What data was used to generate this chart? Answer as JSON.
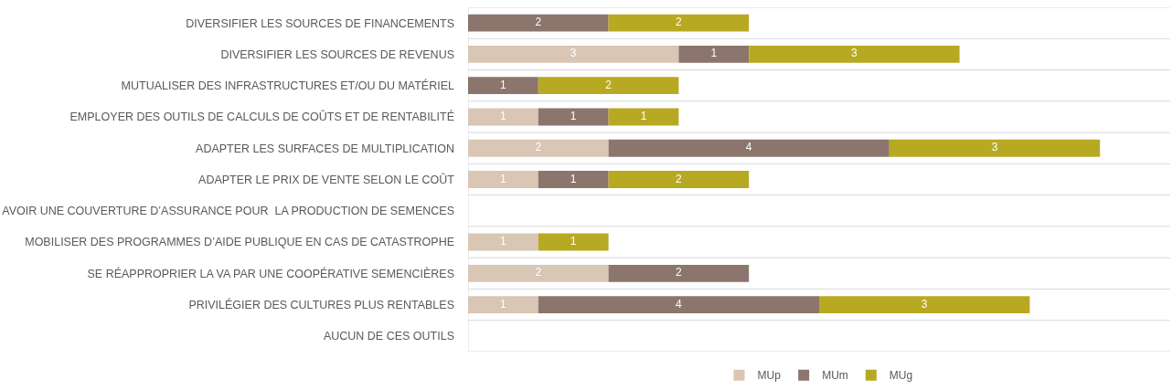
{
  "chart_data": {
    "type": "bar",
    "orientation": "horizontal",
    "stacked": true,
    "legend": "bottom",
    "grid": "y",
    "tick_labels": "y",
    "xlim": [
      0,
      10
    ],
    "categories": [
      "DIVERSIFIER LES SOURCES DE FINANCEMENTS",
      "DIVERSIFIER LES SOURCES DE REVENUS",
      "MUTUALISER DES INFRASTRUCTURES ET/OU DU MATÉRIEL",
      "EMPLOYER DES OUTILS DE CALCULS DE COÛTS ET DE RENTABILITÉ",
      "ADAPTER LES SURFACES DE MULTIPLICATION",
      "ADAPTER LE PRIX DE VENTE SELON LE COÛT",
      "AVOIR UNE COUVERTURE D’ASSURANCE POUR  LA PRODUCTION DE SEMENCES",
      "MOBILISER DES PROGRAMMES D’AIDE PUBLIQUE EN CAS DE CATASTROPHE",
      "SE RÉAPPROPRIER LA VA PAR UNE COOPÉRATIVE SEMENCIÈRES",
      "PRIVILÉGIER DES CULTURES PLUS RENTABLES",
      "AUCUN DE CES OUTILS"
    ],
    "series": [
      {
        "name": "MUp",
        "color": "#d9c6b5",
        "values": [
          0,
          3,
          0,
          1,
          2,
          1,
          null,
          1,
          2,
          1,
          null
        ],
        "value_labels": [
          null,
          "3",
          null,
          "1",
          "2",
          "1",
          null,
          "1",
          "2",
          "1",
          null
        ]
      },
      {
        "name": "MUm",
        "color": "#8b756d",
        "values": [
          2,
          1,
          1,
          1,
          4,
          1,
          null,
          0,
          2,
          4,
          null
        ],
        "value_labels": [
          "2",
          "1",
          "1",
          "1",
          "4",
          "1",
          null,
          null,
          "2",
          "4",
          null
        ]
      },
      {
        "name": "MUg",
        "color": "#b8a922",
        "values": [
          2,
          3,
          2,
          1,
          3,
          2,
          null,
          1,
          0,
          3,
          null
        ],
        "value_labels": [
          "2",
          "3",
          "2",
          "1",
          "3",
          "2",
          null,
          "1",
          null,
          "3",
          null
        ]
      }
    ]
  }
}
